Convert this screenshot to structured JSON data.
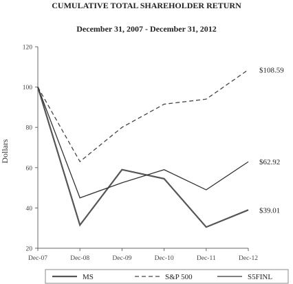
{
  "chart_data": {
    "type": "line",
    "title": "CUMULATIVE TOTAL SHAREHOLDER RETURN",
    "subtitle": "December 31, 2007 - December 31, 2012",
    "xlabel": "",
    "ylabel": "Dollars",
    "categories": [
      "Dec-07",
      "Dec-08",
      "Dec-09",
      "Dec-10",
      "Dec-11",
      "Dec-12"
    ],
    "yticks": [
      20,
      40,
      60,
      80,
      100,
      120
    ],
    "ylim": [
      20,
      120
    ],
    "grid": false,
    "legend_position": "bottom",
    "series": [
      {
        "name": "MS",
        "values": [
          100,
          31.5,
          59,
          54.5,
          30.5,
          39.01
        ],
        "style": "solid",
        "color": "#555555",
        "width": 2.2,
        "end_label": "$39.01"
      },
      {
        "name": "S&P 500",
        "values": [
          100,
          63,
          80,
          91.5,
          94,
          108.59
        ],
        "style": "dashed",
        "color": "#444444",
        "width": 1.3,
        "end_label": "$108.59"
      },
      {
        "name": "S5FINL",
        "values": [
          100,
          45,
          52.5,
          59,
          49,
          62.92
        ],
        "style": "solid",
        "color": "#333333",
        "width": 1.3,
        "end_label": "$62.92"
      }
    ]
  }
}
